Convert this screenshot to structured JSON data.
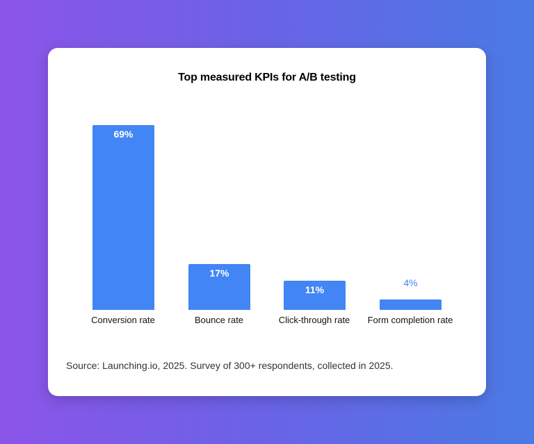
{
  "card": {
    "title": "Top measured KPIs for A/B testing",
    "source": "Source: Launching.io, 2025. Survey of 300+ respondents, collected in 2025."
  },
  "colors": {
    "bar": "#4285f4",
    "background_start": "#8b55e8",
    "background_end": "#4a7ae4"
  },
  "bars": [
    {
      "category": "Conversion rate",
      "value": 69,
      "label": "69%"
    },
    {
      "category": "Bounce rate",
      "value": 17,
      "label": "17%"
    },
    {
      "category": "Click-through rate",
      "value": 11,
      "label": "11%"
    },
    {
      "category": "Form completion rate",
      "value": 4,
      "label": "4%"
    }
  ],
  "chart_data": {
    "type": "bar",
    "title": "Top measured KPIs for A/B testing",
    "categories": [
      "Conversion rate",
      "Bounce rate",
      "Click-through rate",
      "Form completion rate"
    ],
    "values": [
      69,
      17,
      11,
      4
    ],
    "value_labels": [
      "69%",
      "17%",
      "11%",
      "4%"
    ],
    "unit": "%",
    "xlabel": "",
    "ylabel": "",
    "ylim": [
      0,
      69
    ],
    "grid": false,
    "legend": null,
    "annotations": [
      "Source: Launching.io, 2025. Survey of 300+ respondents, collected in 2025."
    ]
  }
}
